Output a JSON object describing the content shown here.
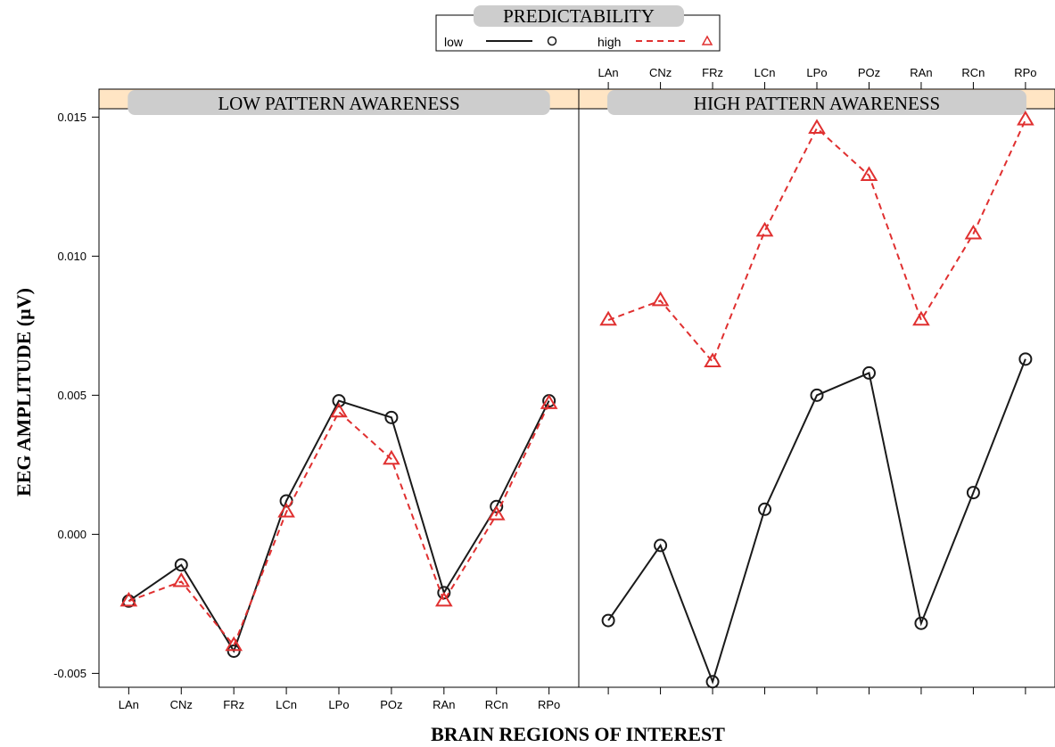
{
  "chart_data": {
    "type": "line",
    "title": "",
    "xlabel": "BRAIN REGIONS OF INTEREST",
    "ylabel": "EEG AMPLITUDE (µV)",
    "ylim": [
      -0.0055,
      0.0153
    ],
    "yticks": [
      -0.005,
      0.0,
      0.005,
      0.01,
      0.015
    ],
    "ytick_labels": [
      "-0.005",
      "0.000",
      "0.005",
      "0.010",
      "0.015"
    ],
    "categories": [
      "LAn",
      "CNz",
      "FRz",
      "LCn",
      "LPo",
      "POz",
      "RAn",
      "RCn",
      "RPo"
    ],
    "legend": {
      "title": "PREDICTABILITY",
      "placement": "top-center",
      "entries": [
        "low",
        "high"
      ]
    },
    "grid": false,
    "panels": [
      {
        "name": "LOW PATTERN AWARENESS",
        "series": [
          {
            "name": "low",
            "values": [
              -0.0024,
              -0.0011,
              -0.0042,
              0.0012,
              0.0048,
              0.0042,
              -0.0021,
              0.001,
              0.0048
            ]
          },
          {
            "name": "high",
            "values": [
              -0.0024,
              -0.0017,
              -0.004,
              0.0008,
              0.0044,
              0.0027,
              -0.0024,
              0.0007,
              0.0047
            ]
          }
        ]
      },
      {
        "name": "HIGH PATTERN AWARENESS",
        "series": [
          {
            "name": "low",
            "values": [
              -0.0031,
              -0.0004,
              -0.0053,
              0.0009,
              0.005,
              0.0058,
              -0.0032,
              0.0015,
              0.0063
            ]
          },
          {
            "name": "high",
            "values": [
              0.0077,
              0.0084,
              0.0062,
              0.0109,
              0.0146,
              0.0129,
              0.0077,
              0.0108,
              0.0149
            ]
          }
        ]
      }
    ]
  },
  "colors": {
    "low": "#1a1a1a",
    "high": "#e03030",
    "strip_bg": "#ffe5c4",
    "strip_label_bg": "#cdcdcd"
  }
}
